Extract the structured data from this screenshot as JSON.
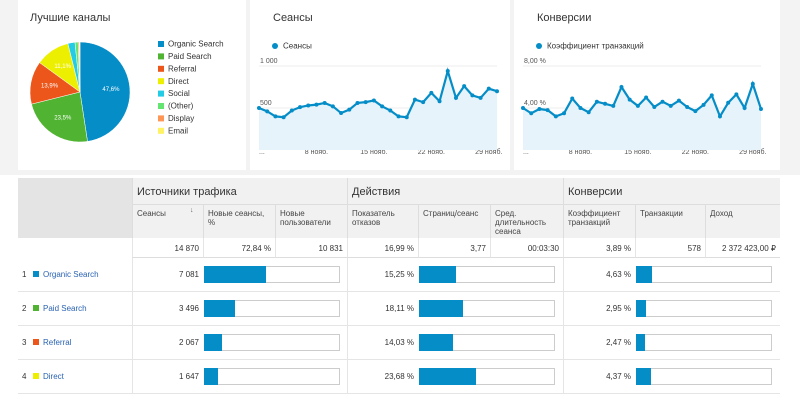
{
  "chart_data": [
    {
      "type": "pie",
      "title": "Лучшие каналы",
      "categories": [
        "Organic Search",
        "Paid Search",
        "Referral",
        "Direct",
        "Social",
        "(Other)",
        "Display",
        "Email"
      ],
      "values": [
        47.6,
        23.5,
        13.9,
        11.1,
        2.3,
        1.0,
        0.4,
        0.2
      ],
      "value_labels": [
        "47,6%",
        "23,5%",
        "13,9%",
        "11,1%",
        null,
        null,
        null,
        null
      ],
      "colors": [
        "#058dc7",
        "#50b432",
        "#ed561b",
        "#edef00",
        "#24cbe5",
        "#64e572",
        "#ff9655",
        "#fff263"
      ]
    },
    {
      "type": "line",
      "title": "Сеансы",
      "categories": [
        "...",
        null,
        null,
        null,
        null,
        null,
        null,
        "8 нояб.",
        null,
        null,
        null,
        null,
        null,
        null,
        "15 нояб.",
        null,
        null,
        null,
        null,
        null,
        null,
        "22 нояб.",
        null,
        null,
        null,
        null,
        null,
        null,
        "29 нояб.",
        null
      ],
      "series": [
        {
          "name": "Сеансы",
          "color": "#058dc7",
          "values": [
            500,
            460,
            400,
            390,
            470,
            510,
            530,
            540,
            560,
            520,
            440,
            480,
            560,
            570,
            590,
            520,
            470,
            400,
            390,
            600,
            570,
            680,
            580,
            940,
            620,
            760,
            650,
            620,
            730,
            700
          ]
        }
      ],
      "ylim": [
        0,
        1000
      ],
      "yticks": [
        {
          "value": 1000,
          "label": "1 000"
        },
        {
          "value": 500,
          "label": "500"
        }
      ],
      "grid": true
    },
    {
      "type": "line",
      "title": "Конверсии",
      "categories": [
        "...",
        null,
        null,
        null,
        null,
        null,
        null,
        "8 нояб.",
        null,
        null,
        null,
        null,
        null,
        null,
        "15 нояб.",
        null,
        null,
        null,
        null,
        null,
        null,
        "22 нояб.",
        null,
        null,
        null,
        null,
        null,
        null,
        "29 нояб.",
        null
      ],
      "series": [
        {
          "name": "Коэффициент транзакций",
          "color": "#058dc7",
          "values": [
            4.0,
            3.5,
            3.9,
            3.8,
            3.2,
            3.5,
            4.9,
            4.0,
            3.6,
            4.6,
            4.4,
            4.2,
            6.0,
            4.8,
            4.2,
            5.0,
            4.1,
            4.6,
            4.2,
            4.7,
            4.1,
            3.7,
            4.3,
            5.2,
            3.2,
            4.5,
            5.3,
            4.0,
            6.3,
            3.9
          ]
        }
      ],
      "ylim": [
        0,
        8
      ],
      "yticks": [
        {
          "value": 8,
          "label": "8,00 %"
        },
        {
          "value": 4,
          "label": "4,00 %"
        }
      ],
      "grid": true
    }
  ],
  "table": {
    "groups": [
      "Источники трафика",
      "Действия",
      "Конверсии"
    ],
    "columns": [
      "Сеансы",
      "Новые сеансы, %",
      "Новые пользователи",
      "Показатель отказов",
      "Страниц/сеанс",
      "Сред. длительность сеанса",
      "Коэффициент транзакций",
      "Транзакции",
      "Доход"
    ],
    "totals": [
      "14 870",
      "72,84 %",
      "10 831",
      "16,99 %",
      "3,77",
      "00:03:30",
      "3,89 %",
      "578",
      "2 372 423,00 ₽"
    ],
    "rows": [
      {
        "rank": 1,
        "channel": "Organic Search",
        "sessions": {
          "value": 7081,
          "label": "7 081"
        },
        "bounce_rate": {
          "value": 15.25,
          "label": "15,25 %"
        },
        "conversion_rate": {
          "value": 4.63,
          "label": "4,63 %"
        }
      },
      {
        "rank": 2,
        "channel": "Paid Search",
        "sessions": {
          "value": 3496,
          "label": "3 496"
        },
        "bounce_rate": {
          "value": 18.11,
          "label": "18,11 %"
        },
        "conversion_rate": {
          "value": 2.95,
          "label": "2,95 %"
        }
      },
      {
        "rank": 3,
        "channel": "Referral",
        "sessions": {
          "value": 2067,
          "label": "2 067"
        },
        "bounce_rate": {
          "value": 14.03,
          "label": "14,03 %"
        },
        "conversion_rate": {
          "value": 2.47,
          "label": "2,47 %"
        }
      },
      {
        "rank": 4,
        "channel": "Direct",
        "sessions": {
          "value": 1647,
          "label": "1 647"
        },
        "bounce_rate": {
          "value": 23.68,
          "label": "23,68 %"
        },
        "conversion_rate": {
          "value": 4.37,
          "label": "4,37 %"
        }
      }
    ]
  }
}
